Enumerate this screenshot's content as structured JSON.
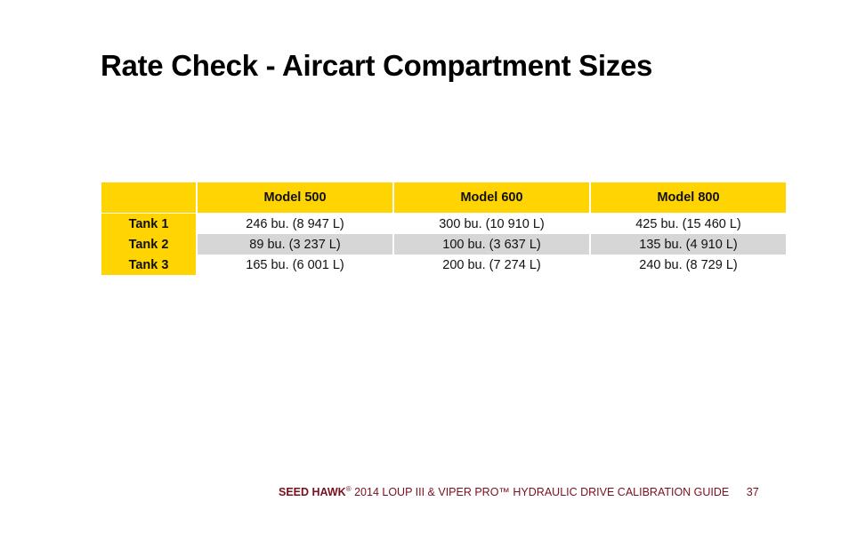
{
  "page": {
    "title": "Rate Check - Aircart Compartment Sizes"
  },
  "table": {
    "headers": [
      "",
      "Model 500",
      "Model 600",
      "Model 800"
    ],
    "rows": [
      {
        "label": "Tank 1",
        "cells": [
          "246 bu. (8 947 L)",
          "300 bu. (10 910 L)",
          "425 bu. (15 460 L)"
        ]
      },
      {
        "label": "Tank 2",
        "cells": [
          "89 bu. (3 237 L)",
          "100 bu. (3 637 L)",
          "135 bu. (4 910 L)"
        ]
      },
      {
        "label": "Tank 3",
        "cells": [
          "165 bu. (6 001 L)",
          "200 bu. (7 274 L)",
          "240 bu. (8 729 L)"
        ]
      }
    ],
    "colors": {
      "header_bg": "#ffd400",
      "alt_row_bg": "#d6d6d6"
    }
  },
  "footer": {
    "brand": "SEED HAWK",
    "registered_mark": "®",
    "guide_title": "2014 LOUP III & VIPER PRO™ HYDRAULIC DRIVE CALIBRATION GUIDE",
    "page_number": "37",
    "color": "#7a0f1e"
  }
}
